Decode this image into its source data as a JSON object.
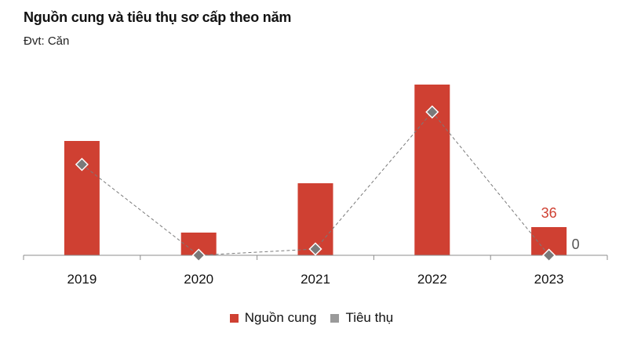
{
  "chart_data": {
    "type": "bar",
    "title": "Nguồn cung và tiêu thụ sơ cấp theo năm",
    "subtitle": "Đvt: Căn",
    "categories": [
      "2019",
      "2020",
      "2021",
      "2022",
      "2023"
    ],
    "series": [
      {
        "name": "Nguồn cung",
        "type": "bar",
        "color": "#cf4032",
        "values": [
          146,
          29,
          92,
          218,
          36
        ]
      },
      {
        "name": "Tiêu thụ",
        "type": "line",
        "marker": "diamond",
        "color": "#7a7a7a",
        "values": [
          116,
          0,
          8,
          183,
          0
        ]
      }
    ],
    "data_labels": [
      {
        "series": "Nguồn cung",
        "category": "2023",
        "text": "36",
        "color": "#cf4032"
      },
      {
        "series": "Tiêu thụ",
        "category": "2023",
        "text": "0",
        "color": "#555555"
      }
    ],
    "ylim": [
      0,
      230
    ],
    "grid": false,
    "legend_position": "bottom"
  }
}
